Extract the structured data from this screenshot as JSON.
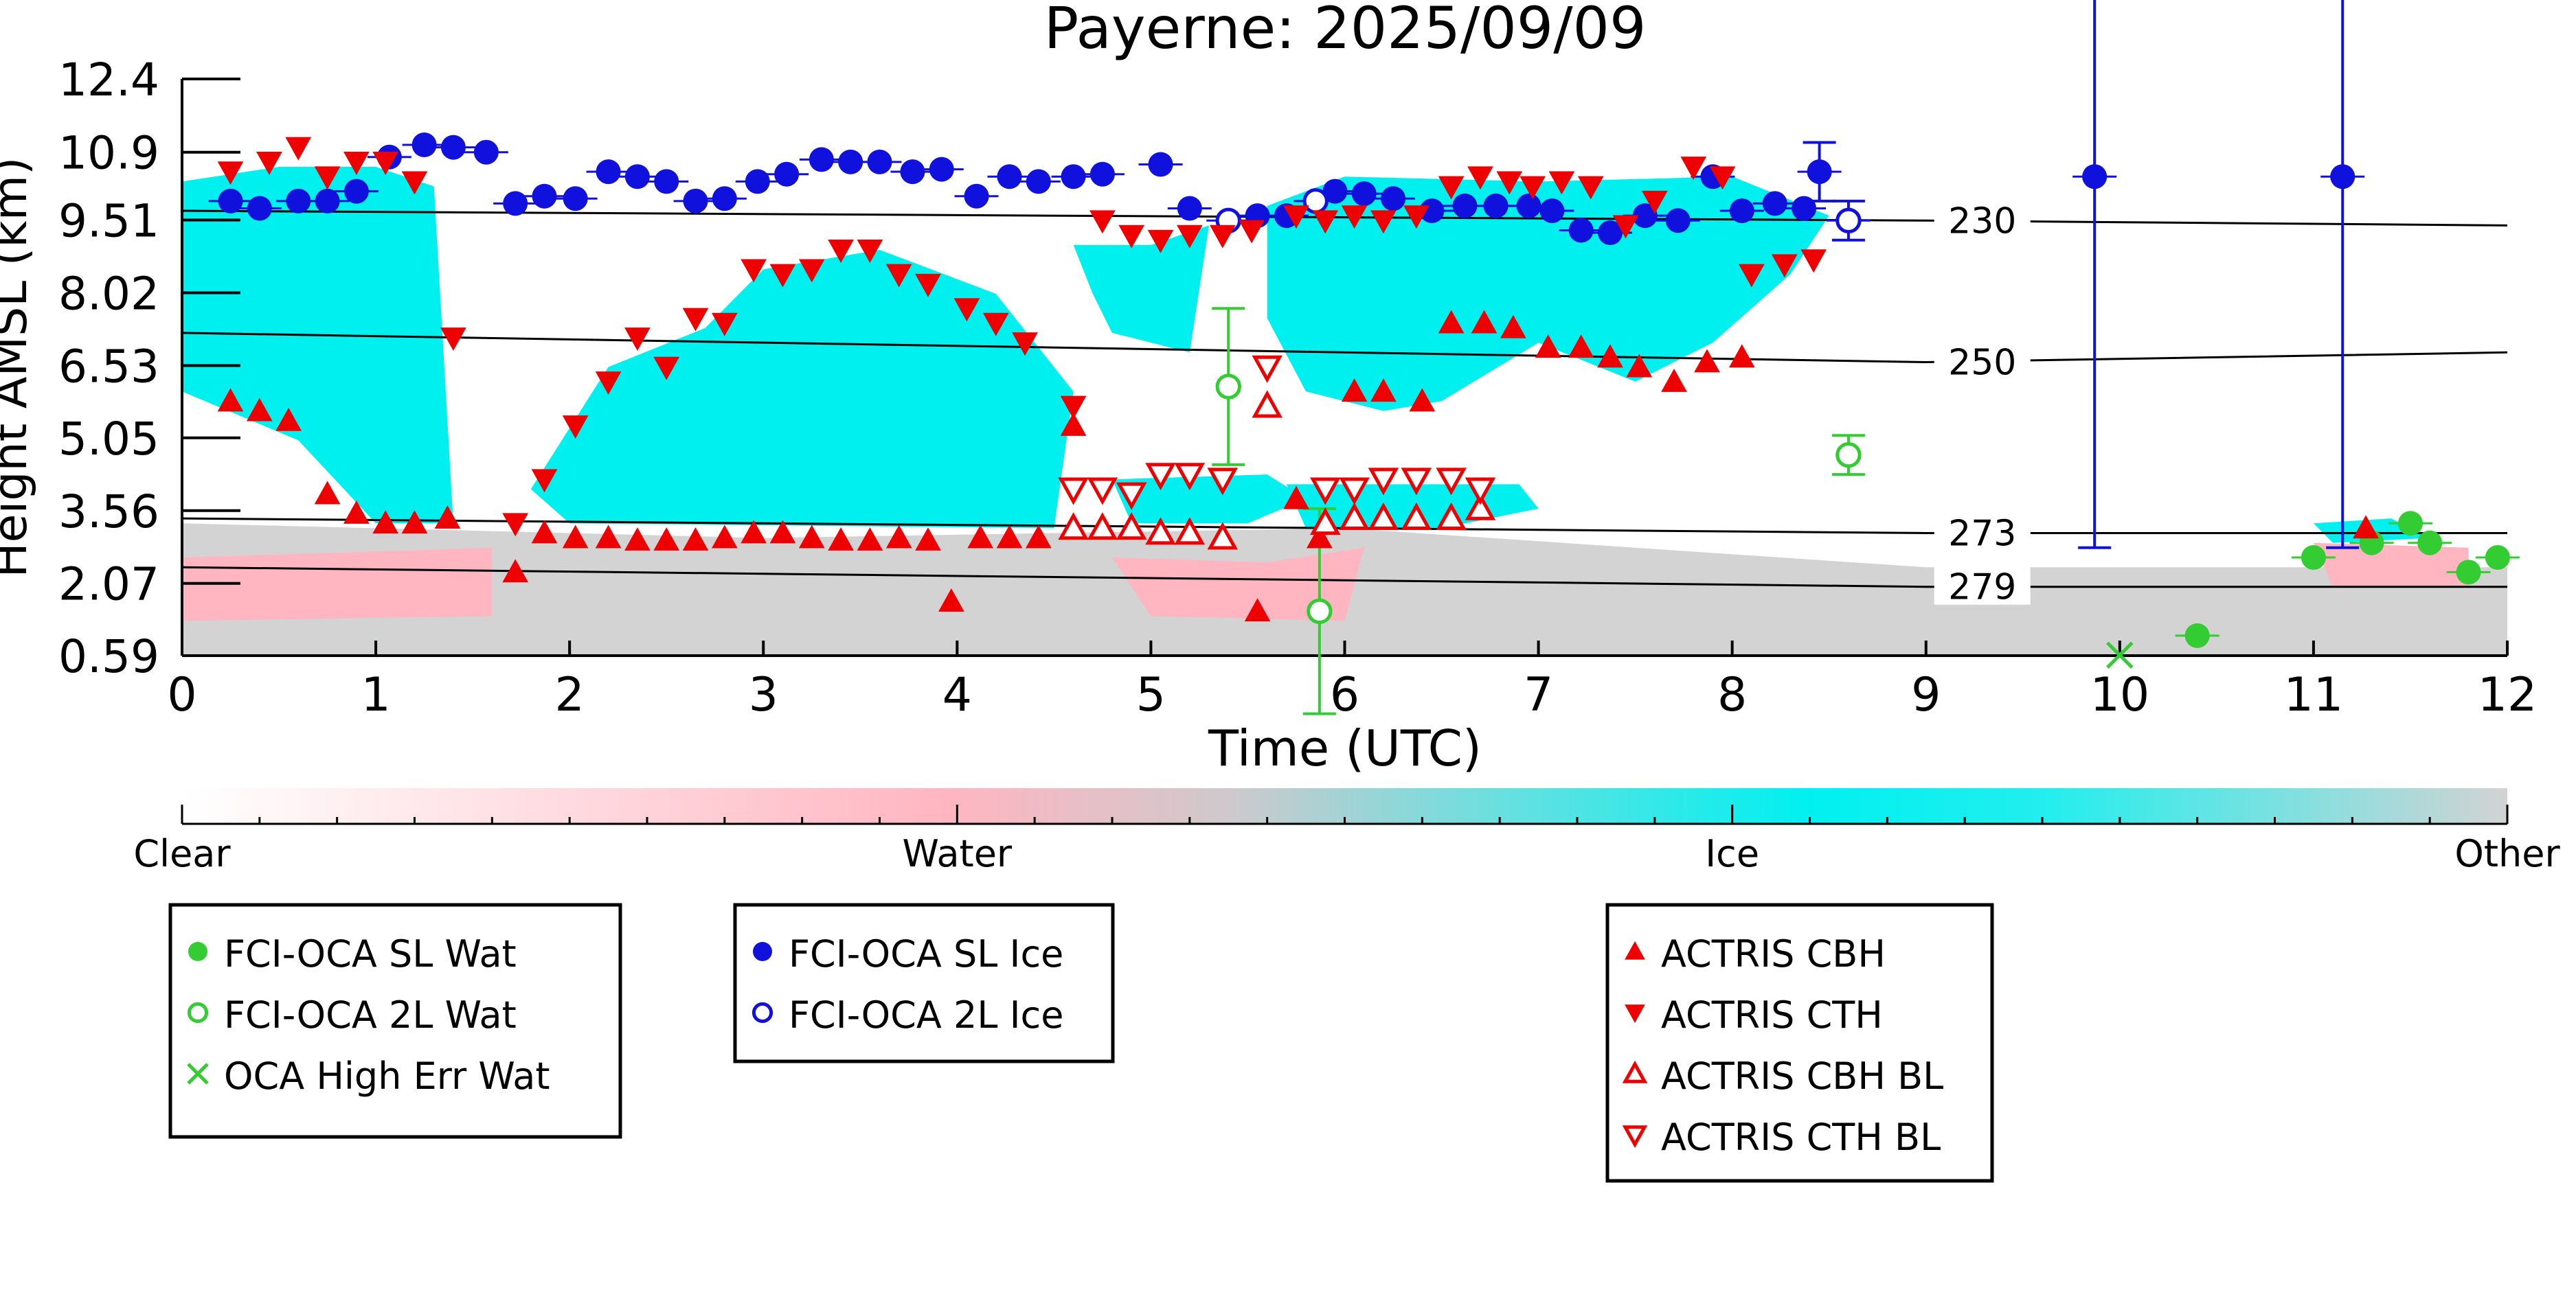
{
  "chart_data": {
    "type": "scatter",
    "title": "Payerne: 2025/09/09",
    "xlabel": "Time (UTC)",
    "ylabel": "Height AMSL (km)",
    "xlim": [
      0,
      12
    ],
    "ylim": [
      0.59,
      12.4
    ],
    "x_ticks": [
      "0",
      "1",
      "2",
      "3",
      "4",
      "5",
      "6",
      "7",
      "8",
      "9",
      "10",
      "11",
      "12"
    ],
    "y_ticks": [
      "0.59",
      "2.07",
      "3.56",
      "5.05",
      "6.53",
      "8.02",
      "9.51",
      "10.9",
      "12.4"
    ],
    "y_tick_values": [
      0.59,
      2.07,
      3.56,
      5.05,
      6.53,
      8.02,
      9.51,
      10.9,
      12.4
    ],
    "colorbar": {
      "labels": [
        "Clear",
        "Water",
        "Ice",
        "Other"
      ],
      "colors": [
        "#ffffff",
        "#ffb6c1",
        "#00f0f0",
        "#d3d3d3"
      ]
    },
    "isotherms": [
      {
        "label": "230",
        "points": [
          [
            0,
            9.7
          ],
          [
            9,
            9.5
          ],
          [
            12,
            9.4
          ]
        ]
      },
      {
        "label": "250",
        "points": [
          [
            0,
            7.2
          ],
          [
            9,
            6.6
          ],
          [
            12,
            6.8
          ]
        ]
      },
      {
        "label": "273",
        "points": [
          [
            0,
            3.4
          ],
          [
            9,
            3.1
          ],
          [
            12,
            3.1
          ]
        ]
      },
      {
        "label": "279",
        "points": [
          [
            0,
            2.4
          ],
          [
            9,
            2.0
          ],
          [
            12,
            2.0
          ]
        ]
      }
    ],
    "clouds": {
      "ice": [
        [
          [
            0.0,
            10.3
          ],
          [
            0.5,
            10.6
          ],
          [
            1.0,
            10.6
          ],
          [
            1.3,
            10.2
          ],
          [
            1.4,
            3.3
          ],
          [
            1.0,
            3.3
          ],
          [
            0.6,
            5.0
          ],
          [
            0.0,
            6.0
          ]
        ],
        [
          [
            1.8,
            4.0
          ],
          [
            2.2,
            6.5
          ],
          [
            2.7,
            7.3
          ],
          [
            3.0,
            8.5
          ],
          [
            3.6,
            8.9
          ],
          [
            4.2,
            8.0
          ],
          [
            4.6,
            6.0
          ],
          [
            4.5,
            3.2
          ],
          [
            2.0,
            3.3
          ]
        ],
        [
          [
            4.6,
            9.0
          ],
          [
            5.0,
            9.0
          ],
          [
            5.3,
            9.4
          ],
          [
            5.2,
            6.8
          ],
          [
            4.8,
            7.2
          ],
          [
            4.7,
            8.0
          ]
        ],
        [
          [
            4.8,
            4.2
          ],
          [
            5.6,
            4.3
          ],
          [
            5.8,
            3.8
          ],
          [
            5.5,
            3.3
          ],
          [
            4.9,
            3.3
          ]
        ],
        [
          [
            5.6,
            9.8
          ],
          [
            6.0,
            10.4
          ],
          [
            7.0,
            10.3
          ],
          [
            8.0,
            10.4
          ],
          [
            8.5,
            9.6
          ],
          [
            8.3,
            8.4
          ],
          [
            7.9,
            7.0
          ],
          [
            7.5,
            6.2
          ],
          [
            7.0,
            7.0
          ],
          [
            6.5,
            5.8
          ],
          [
            6.2,
            5.6
          ],
          [
            5.8,
            6.0
          ],
          [
            5.6,
            7.5
          ]
        ],
        [
          [
            5.7,
            4.1
          ],
          [
            6.9,
            4.1
          ],
          [
            7.0,
            3.6
          ],
          [
            6.5,
            3.2
          ],
          [
            5.8,
            3.2
          ]
        ],
        [
          [
            11.0,
            3.3
          ],
          [
            11.4,
            3.4
          ],
          [
            11.6,
            3.0
          ],
          [
            11.1,
            2.9
          ]
        ]
      ],
      "water": [
        [
          [
            0.0,
            1.3
          ],
          [
            1.6,
            1.4
          ],
          [
            1.6,
            2.8
          ],
          [
            0.0,
            2.6
          ]
        ],
        [
          [
            4.8,
            2.6
          ],
          [
            5.6,
            2.5
          ],
          [
            6.1,
            2.8
          ],
          [
            6.0,
            1.3
          ],
          [
            5.0,
            1.4
          ]
        ],
        [
          [
            11.0,
            2.9
          ],
          [
            11.8,
            2.8
          ],
          [
            11.8,
            2.0
          ],
          [
            11.1,
            2.0
          ]
        ]
      ],
      "other": [
        [
          [
            0.0,
            0.6
          ],
          [
            12.0,
            0.6
          ],
          [
            12.0,
            2.4
          ],
          [
            9.0,
            2.4
          ],
          [
            6.0,
            3.2
          ],
          [
            3.0,
            3.0
          ],
          [
            0.0,
            3.3
          ]
        ]
      ]
    },
    "series": [
      {
        "name": "FCI-OCA SL Wat",
        "marker": "filled-circle",
        "color": "#33cc33",
        "x": [
          10.4,
          11.0,
          11.3,
          11.5,
          11.6,
          11.8,
          11.95
        ],
        "y": [
          1.0,
          2.6,
          2.9,
          3.3,
          2.9,
          2.3,
          2.6
        ]
      },
      {
        "name": "FCI-OCA 2L Wat",
        "marker": "open-circle",
        "color": "#33cc33",
        "x": [
          5.4,
          5.87,
          8.6
        ],
        "y": [
          6.1,
          1.5,
          4.7
        ],
        "err": [
          1.6,
          2.1,
          0.4
        ]
      },
      {
        "name": "OCA High Err Wat",
        "marker": "x",
        "color": "#33cc33",
        "x": [
          10.0
        ],
        "y": [
          0.6
        ]
      },
      {
        "name": "FCI-OCA SL Ice",
        "marker": "filled-circle",
        "color": "#1111dd",
        "x": [
          0.25,
          0.4,
          0.6,
          0.75,
          0.9,
          1.07,
          1.25,
          1.4,
          1.57,
          1.72,
          1.87,
          2.03,
          2.2,
          2.35,
          2.5,
          2.65,
          2.8,
          2.97,
          3.12,
          3.3,
          3.45,
          3.6,
          3.77,
          3.92,
          4.1,
          4.27,
          4.42,
          4.6,
          4.75,
          5.05,
          5.2,
          5.55,
          5.7,
          5.95,
          6.1,
          6.25,
          6.45,
          6.62,
          6.78,
          6.95,
          7.07,
          7.22,
          7.37,
          7.55,
          7.72,
          7.9,
          8.05,
          8.22,
          8.37,
          8.45,
          9.87,
          11.15
        ],
        "y": [
          9.9,
          9.75,
          9.9,
          9.9,
          10.1,
          10.8,
          11.05,
          11.0,
          10.9,
          9.85,
          10.0,
          9.95,
          10.5,
          10.4,
          10.3,
          9.9,
          9.95,
          10.3,
          10.45,
          10.75,
          10.7,
          10.7,
          10.5,
          10.55,
          10.0,
          10.4,
          10.3,
          10.4,
          10.45,
          10.65,
          9.75,
          9.6,
          9.6,
          10.1,
          10.05,
          9.95,
          9.7,
          9.8,
          9.8,
          9.8,
          9.7,
          9.3,
          9.25,
          9.6,
          9.5,
          10.4,
          9.7,
          9.85,
          9.75,
          10.5,
          10.4,
          10.4
        ],
        "err": [
          0,
          0,
          0,
          0,
          0,
          0,
          0,
          0,
          0,
          0,
          0,
          0,
          0,
          0,
          0,
          0,
          0,
          0,
          0,
          0,
          0,
          0,
          0,
          0,
          0,
          0,
          0,
          0,
          0,
          0,
          0,
          0,
          0,
          0,
          0,
          0,
          0,
          0,
          0,
          0,
          0,
          0,
          0,
          0,
          0,
          0,
          0,
          0,
          0,
          0.6,
          7.6,
          7.6
        ]
      },
      {
        "name": "FCI-OCA 2L Ice",
        "marker": "open-circle",
        "color": "#1111dd",
        "x": [
          5.4,
          5.85,
          8.6
        ],
        "y": [
          9.5,
          9.9,
          9.5
        ],
        "err": [
          0,
          0,
          0.4
        ]
      },
      {
        "name": "ACTRIS CBH",
        "marker": "triangle-up",
        "color": "#ee0000",
        "x": [
          0.25,
          0.4,
          0.55,
          0.75,
          0.9,
          1.05,
          1.2,
          1.37,
          1.72,
          1.87,
          2.03,
          2.2,
          2.35,
          2.5,
          2.65,
          2.8,
          2.95,
          3.1,
          3.25,
          3.4,
          3.55,
          3.7,
          3.85,
          3.97,
          4.12,
          4.27,
          4.42,
          4.6,
          5.37,
          5.55,
          5.75,
          5.87,
          6.05,
          6.2,
          6.4,
          6.55,
          6.72,
          6.87,
          7.05,
          7.22,
          7.37,
          7.52,
          7.7,
          7.87,
          8.05,
          11.27
        ],
        "y": [
          5.8,
          5.6,
          5.4,
          3.9,
          3.5,
          3.3,
          3.3,
          3.4,
          2.3,
          3.1,
          3.0,
          3.0,
          2.95,
          2.95,
          2.95,
          3.0,
          3.1,
          3.1,
          3.0,
          2.95,
          2.95,
          3.0,
          2.95,
          1.7,
          3.0,
          3.0,
          3.0,
          5.3,
          3.0,
          1.5,
          3.8,
          3.0,
          6.0,
          6.0,
          5.8,
          7.4,
          7.4,
          7.3,
          6.9,
          6.9,
          6.7,
          6.5,
          6.2,
          6.6,
          6.7,
          3.2
        ]
      },
      {
        "name": "ACTRIS CTH",
        "marker": "triangle-down",
        "color": "#ee0000",
        "x": [
          0.25,
          0.45,
          0.6,
          0.75,
          0.9,
          1.05,
          1.2,
          1.4,
          1.72,
          1.87,
          2.03,
          2.2,
          2.35,
          2.5,
          2.65,
          2.8,
          2.95,
          3.1,
          3.25,
          3.4,
          3.55,
          3.7,
          3.85,
          4.05,
          4.2,
          4.35,
          4.6,
          4.75,
          4.9,
          5.05,
          5.2,
          5.37,
          5.52,
          5.75,
          5.9,
          6.05,
          6.2,
          6.37,
          6.55,
          6.7,
          6.85,
          6.97,
          7.12,
          7.27,
          7.45,
          7.6,
          7.8,
          7.95,
          8.1,
          8.27,
          8.42
        ],
        "y": [
          10.5,
          10.7,
          11.0,
          10.4,
          10.7,
          10.7,
          10.3,
          7.1,
          3.3,
          4.2,
          5.3,
          6.2,
          7.1,
          6.5,
          7.5,
          7.4,
          8.5,
          8.4,
          8.5,
          8.9,
          8.9,
          8.4,
          8.2,
          7.7,
          7.4,
          7.0,
          5.7,
          9.5,
          9.2,
          9.1,
          9.2,
          9.2,
          9.3,
          9.6,
          9.5,
          9.6,
          9.5,
          9.6,
          10.2,
          10.4,
          10.3,
          10.2,
          10.3,
          10.2,
          9.4,
          9.9,
          10.6,
          10.4,
          8.4,
          8.6,
          8.7
        ]
      },
      {
        "name": "ACTRIS CBH BL",
        "marker": "open-triangle-up",
        "color": "#ee0000",
        "x": [
          4.6,
          4.75,
          4.9,
          5.05,
          5.2,
          5.37,
          5.9,
          6.05,
          6.2,
          6.37,
          6.55,
          6.7,
          5.6
        ],
        "y": [
          3.2,
          3.2,
          3.2,
          3.1,
          3.1,
          3.0,
          3.3,
          3.4,
          3.4,
          3.4,
          3.4,
          3.6,
          5.7
        ]
      },
      {
        "name": "ACTRIS CTH BL",
        "marker": "open-triangle-down",
        "color": "#ee0000",
        "x": [
          4.6,
          4.75,
          4.9,
          5.05,
          5.2,
          5.37,
          5.9,
          6.05,
          6.2,
          6.37,
          6.55,
          6.7,
          5.6
        ],
        "y": [
          4.0,
          4.0,
          3.9,
          4.3,
          4.3,
          4.2,
          4.0,
          4.0,
          4.2,
          4.2,
          4.2,
          4.0,
          6.5
        ]
      }
    ],
    "legends": [
      [
        "FCI-OCA SL Wat",
        "FCI-OCA 2L Wat",
        "OCA High Err Wat"
      ],
      [
        "FCI-OCA SL Ice",
        "FCI-OCA 2L Ice"
      ],
      [
        "ACTRIS CBH",
        "ACTRIS CTH",
        "ACTRIS CBH BL",
        "ACTRIS CTH BL"
      ]
    ]
  }
}
